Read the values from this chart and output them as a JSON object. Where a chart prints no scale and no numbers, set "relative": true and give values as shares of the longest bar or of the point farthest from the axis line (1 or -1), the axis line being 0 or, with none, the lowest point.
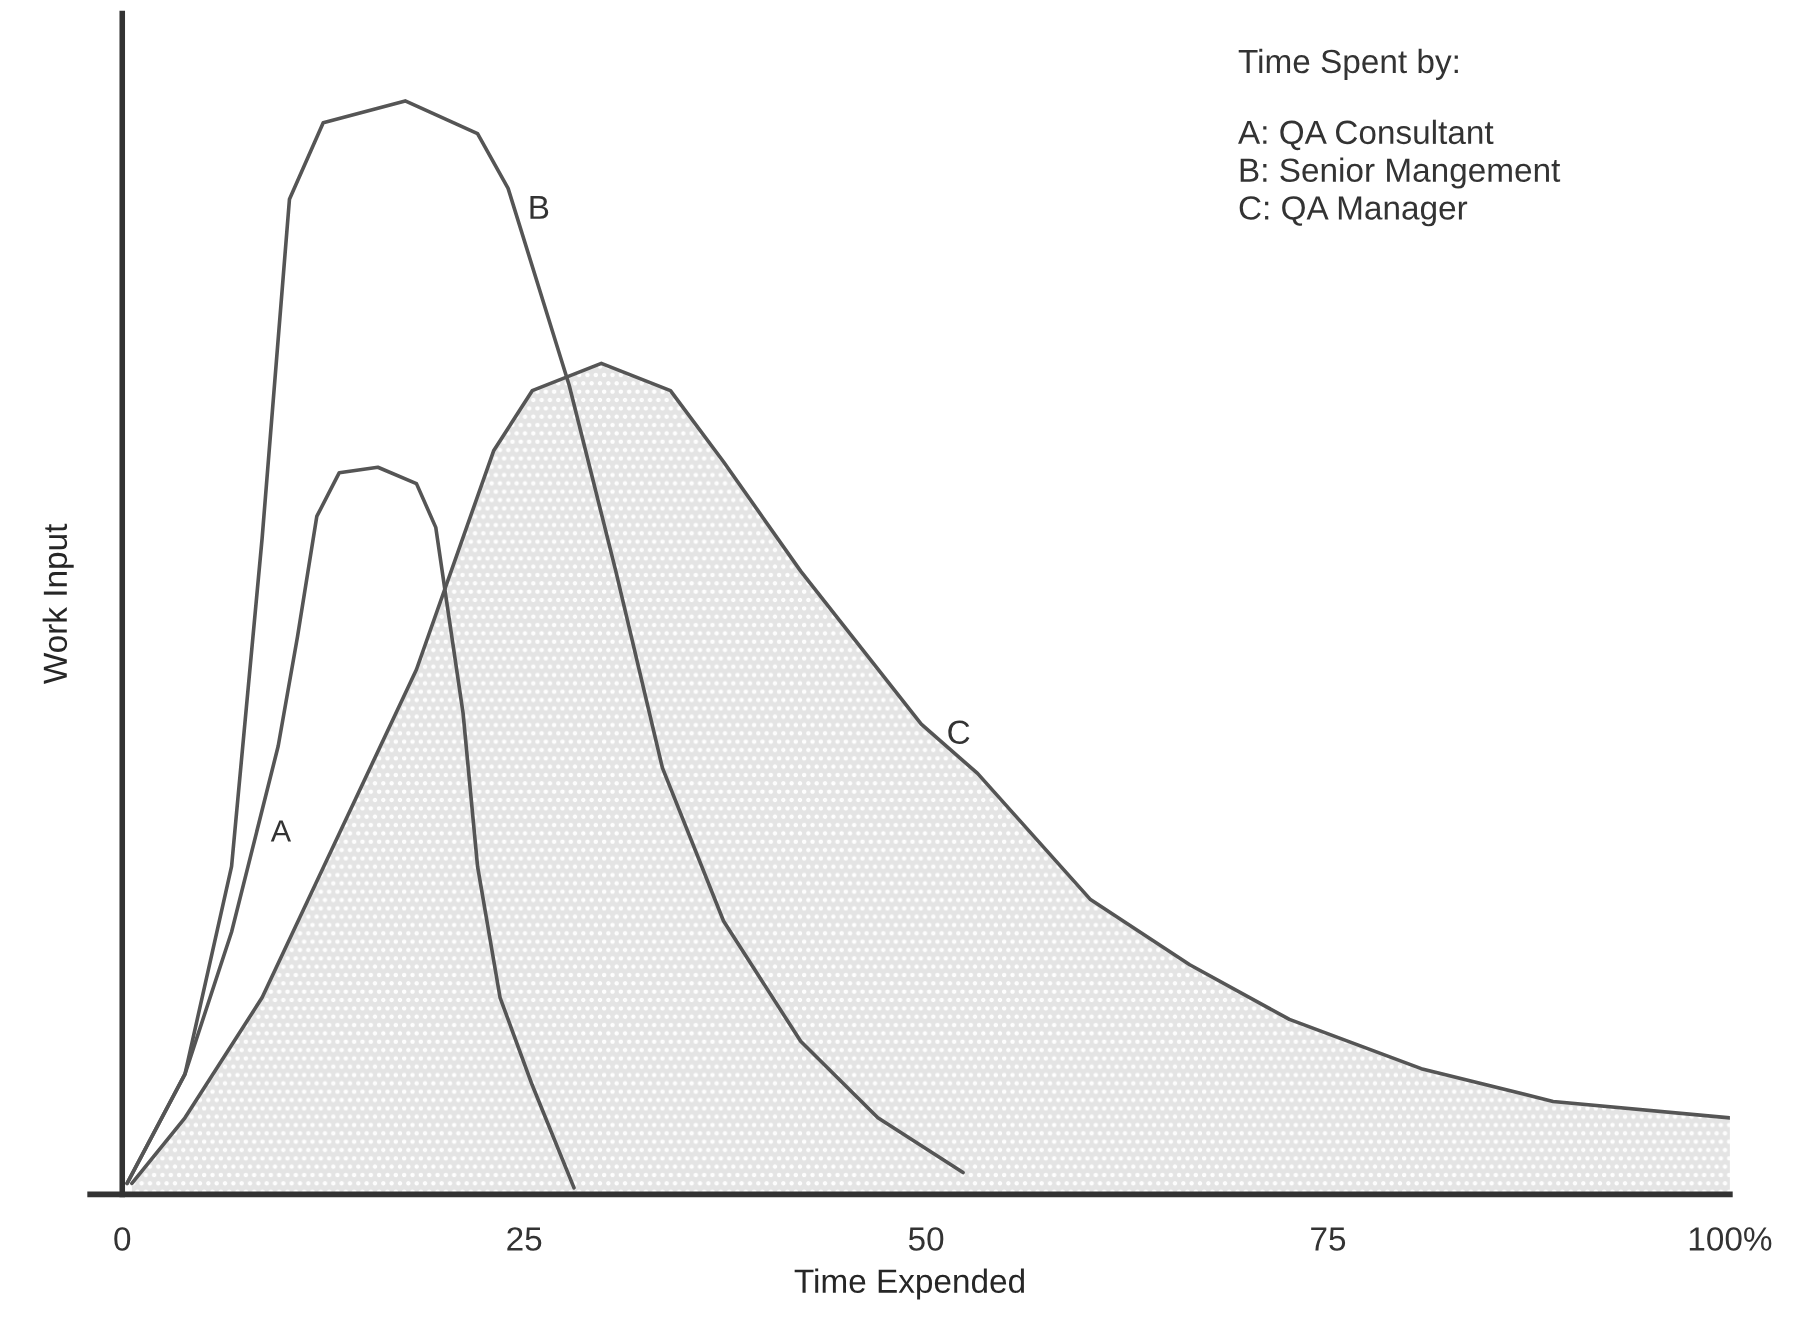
{
  "chart_data": {
    "type": "line",
    "relative": true,
    "xlabel": "Time Expended",
    "ylabel": "Work Input",
    "xlim": [
      -2,
      100
    ],
    "xticks": [
      0,
      25,
      50,
      75,
      {
        "value": 100,
        "label": "100%"
      }
    ],
    "series": [
      {
        "name": "A",
        "color": "#555555",
        "x": [
          0.3,
          3.9,
          6.8,
          9.7,
          10.9,
          12.1,
          13.5,
          15.9,
          18.3,
          19.5,
          20.2,
          21.2,
          22.1,
          23.5,
          25.5,
          28.1
        ],
        "values": [
          0.01,
          0.11,
          0.24,
          0.41,
          0.51,
          0.62,
          0.66,
          0.665,
          0.65,
          0.61,
          0.54,
          0.44,
          0.3,
          0.18,
          0.1,
          0.006
        ]
      },
      {
        "name": "B",
        "color": "#555555",
        "x": [
          0.3,
          3.9,
          6.8,
          8.7,
          10.4,
          12.5,
          17.6,
          22.1,
          24,
          27.8,
          30.7,
          33.6,
          37.4,
          42.2,
          47,
          52.3
        ],
        "values": [
          0.01,
          0.11,
          0.3,
          0.6,
          0.91,
          0.98,
          1.0,
          0.97,
          0.92,
          0.74,
          0.57,
          0.39,
          0.25,
          0.14,
          0.07,
          0.02
        ]
      },
      {
        "type": "area",
        "name": "C",
        "color": "#555555",
        "x": [
          0.6,
          3.9,
          8.7,
          13.5,
          18.3,
          23.1,
          25.5,
          29.8,
          34.1,
          37.4,
          42.2,
          49.7,
          53.2,
          60.2,
          66.4,
          72.6,
          80.8,
          89,
          100
        ],
        "values": [
          0.01,
          0.07,
          0.18,
          0.33,
          0.48,
          0.68,
          0.735,
          0.76,
          0.735,
          0.67,
          0.57,
          0.43,
          0.385,
          0.27,
          0.21,
          0.16,
          0.115,
          0.085,
          0.07
        ]
      }
    ],
    "annotations": [
      "Time Spent by:",
      "A: QA Consultant",
      "B: Senior Mangement",
      "C: QA Manager"
    ]
  }
}
